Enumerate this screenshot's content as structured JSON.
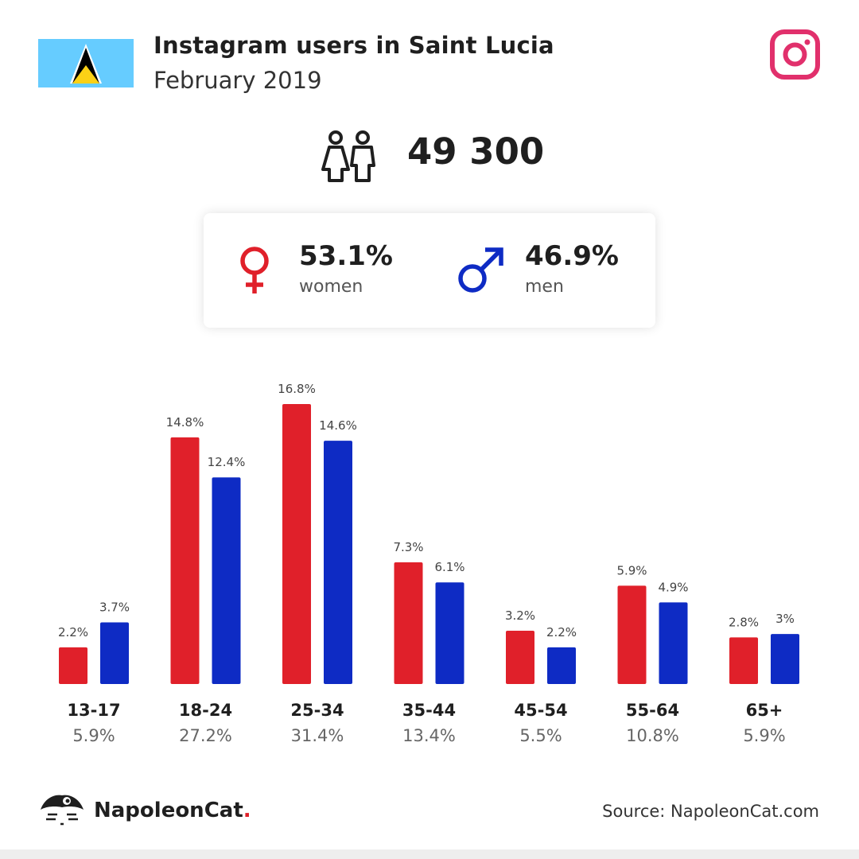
{
  "header": {
    "title": "Instagram users in Saint Lucia",
    "subtitle": "February 2019"
  },
  "total_users": "49 300",
  "gender": {
    "women_pct": "53.1%",
    "women_label": "women",
    "men_pct": "46.9%",
    "men_label": "men"
  },
  "colors": {
    "women": "#e0202a",
    "men": "#0e2bc4",
    "instagram": "#e1306c",
    "flag_bg": "#66ccff"
  },
  "icons": {
    "flag": "saint-lucia-flag-icon",
    "platform": "instagram-icon",
    "users": "people-icon",
    "women": "female-symbol-icon",
    "men": "male-symbol-icon",
    "brand": "napoleoncat-logo-icon"
  },
  "chart_data": {
    "type": "bar",
    "categories": [
      "13-17",
      "18-24",
      "25-34",
      "35-44",
      "45-54",
      "55-64",
      "65+"
    ],
    "category_totals": [
      "5.9%",
      "27.2%",
      "31.4%",
      "13.4%",
      "5.5%",
      "10.8%",
      "5.9%"
    ],
    "series": [
      {
        "name": "women",
        "values": [
          2.2,
          14.8,
          16.8,
          7.3,
          3.2,
          5.9,
          2.8
        ],
        "labels": [
          "2.2%",
          "14.8%",
          "16.8%",
          "7.3%",
          "3.2%",
          "5.9%",
          "2.8%"
        ]
      },
      {
        "name": "men",
        "values": [
          3.7,
          12.4,
          14.6,
          6.1,
          2.2,
          4.9,
          3.0
        ],
        "labels": [
          "3.7%",
          "12.4%",
          "14.6%",
          "6.1%",
          "2.2%",
          "4.9%",
          "3%"
        ]
      }
    ],
    "ylim": [
      0,
      16.8
    ],
    "grid": false,
    "legend": "none"
  },
  "footer": {
    "brand_name": "NapoleonCat",
    "brand_dot": ".",
    "source": "Source: NapoleonCat.com"
  }
}
